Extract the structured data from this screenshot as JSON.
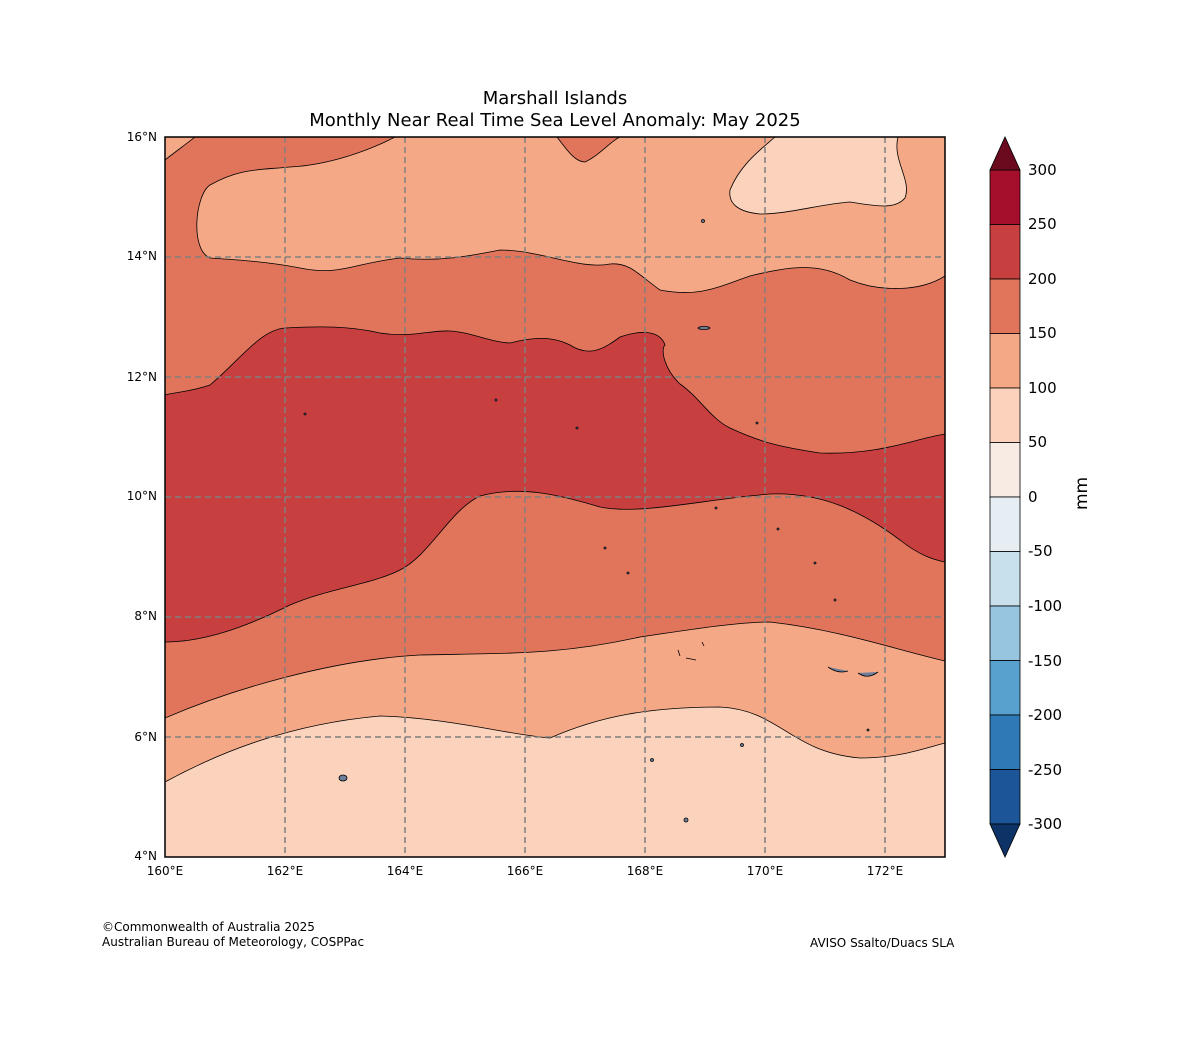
{
  "title": {
    "line1": "Marshall Islands",
    "line2": "Monthly Near Real Time Sea Level Anomaly: May 2025"
  },
  "axes": {
    "lat_labels": [
      "16°N",
      "14°N",
      "12°N",
      "10°N",
      "8°N",
      "6°N",
      "4°N"
    ],
    "lon_labels": [
      "160°E",
      "162°E",
      "164°E",
      "166°E",
      "168°E",
      "170°E",
      "172°E"
    ]
  },
  "colorbar": {
    "unit": "mm",
    "labels": [
      "300",
      "250",
      "200",
      "150",
      "100",
      "50",
      "0",
      "-50",
      "-100",
      "-150",
      "-200",
      "-250",
      "-300"
    ],
    "colors": [
      "#a50f2b",
      "#c73f3f",
      "#e0755c",
      "#f4a886",
      "#fbd2bc",
      "#f7ebe4",
      "#e6eef4",
      "#c8dfec",
      "#97c5df",
      "#58a1cf",
      "#2f79b7",
      "#1c5598"
    ],
    "over_color": "#6b0a1f",
    "under_color": "#0d3366"
  },
  "chart_data": {
    "type": "contour-map",
    "title": "Marshall Islands — Monthly Near Real Time Sea Level Anomaly: May 2025",
    "units": "mm",
    "lon_range": [
      160,
      173
    ],
    "lat_range": [
      4,
      16
    ],
    "contour_levels": [
      -300,
      -250,
      -200,
      -150,
      -100,
      -50,
      0,
      50,
      100,
      150,
      200,
      250,
      300
    ],
    "observed_ranges": [
      {
        "region": "south (4-6°N)",
        "range_mm": [
          50,
          100
        ]
      },
      {
        "region": "6-7°N band",
        "range_mm": [
          100,
          150
        ]
      },
      {
        "region": "7-9°N band",
        "range_mm": [
          150,
          200
        ]
      },
      {
        "region": "9-12°N core",
        "range_mm": [
          200,
          250
        ]
      },
      {
        "region": "12-14°N band",
        "range_mm": [
          150,
          200
        ]
      },
      {
        "region": "14-16°N north",
        "range_mm": [
          100,
          150
        ]
      },
      {
        "region": "NE pocket near 171°E 15°N",
        "range_mm": [
          50,
          100
        ]
      }
    ]
  },
  "footer": {
    "copyright": "©Commonwealth of Australia 2025",
    "agency": "Australian Bureau of Meteorology, COSPPac",
    "source": "AVISO Ssalto/Duacs SLA"
  }
}
